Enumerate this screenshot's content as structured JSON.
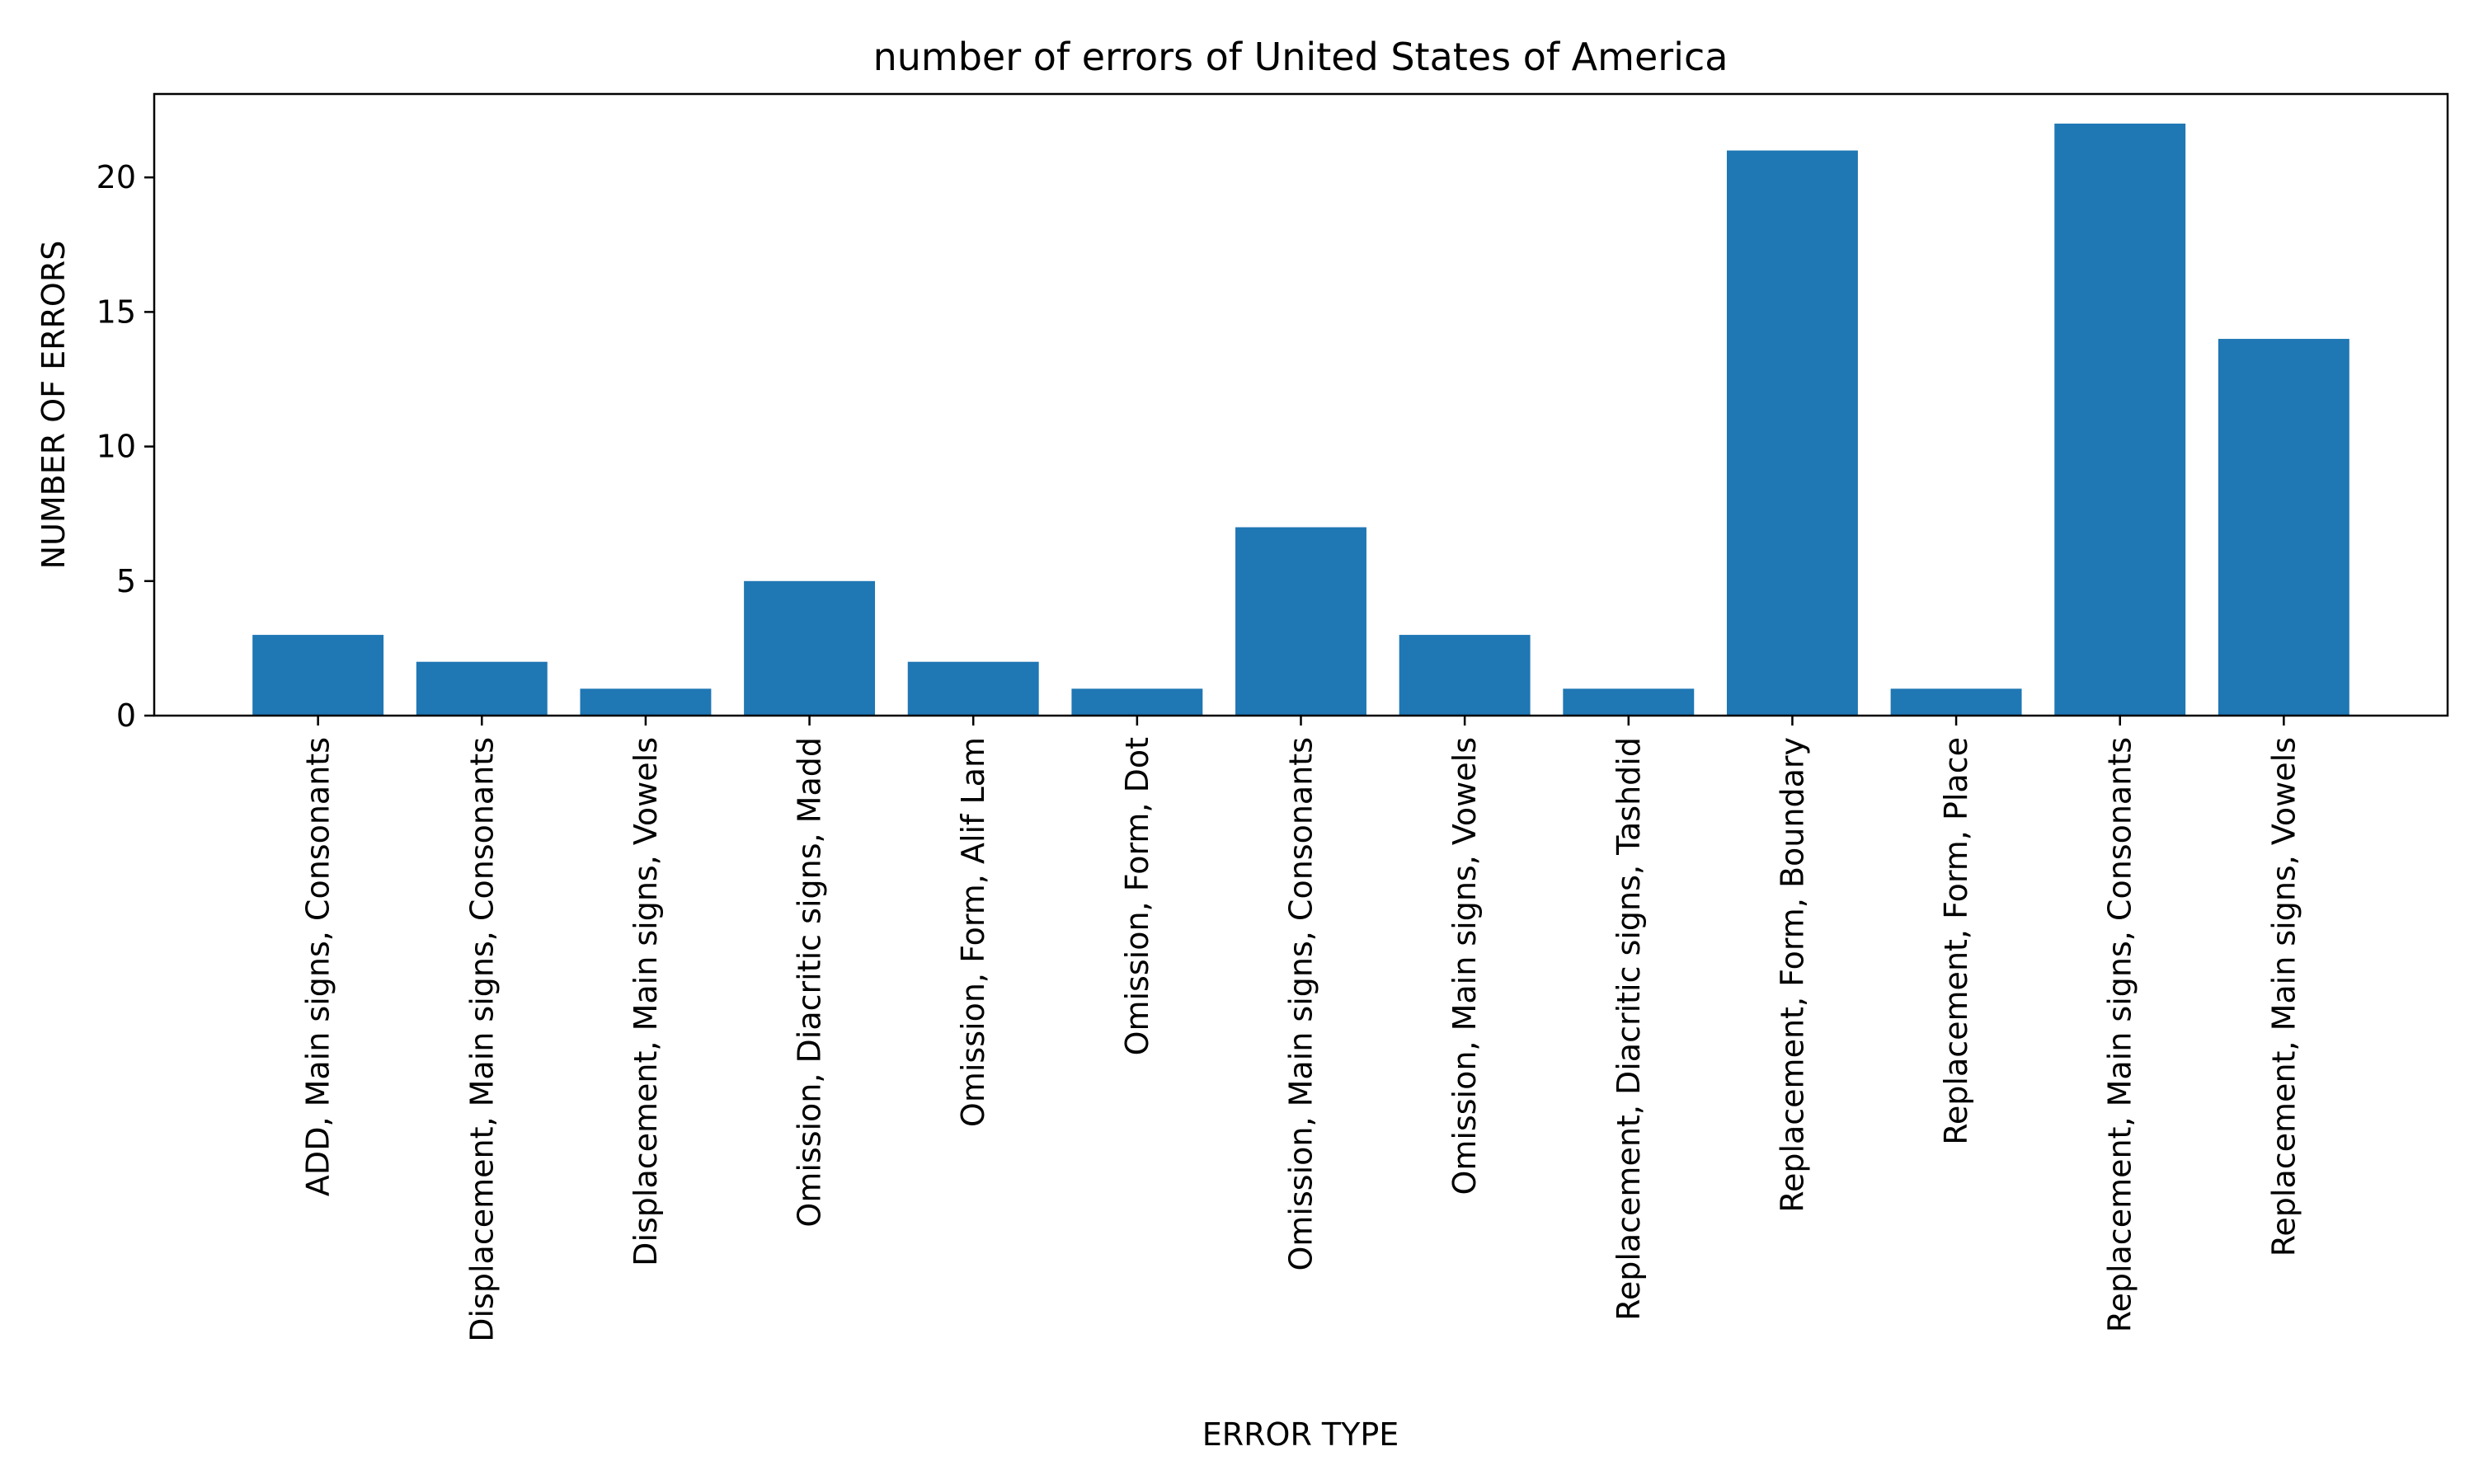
{
  "chart_data": {
    "type": "bar",
    "title": "number of errors of United States of America",
    "xlabel": "ERROR TYPE",
    "ylabel": "NUMBER OF ERRORS",
    "categories": [
      "ADD, Main signs, Consonants",
      "Displacement, Main signs, Consonants",
      "Displacement, Main signs, Vowels",
      "Omission, Diacritic signs, Madd",
      "Omission, Form, Alif Lam",
      "Omission, Form, Dot",
      "Omission, Main signs, Consonants",
      "Omission, Main signs, Vowels",
      "Replacement, Diacritic signs, Tashdid",
      "Replacement, Form, Boundary",
      "Replacement, Form, Place",
      "Replacement, Main signs, Consonants",
      "Replacement, Main signs, Vowels"
    ],
    "values": [
      3,
      2,
      1,
      5,
      2,
      1,
      7,
      3,
      1,
      21,
      1,
      22,
      14
    ],
    "ylim": [
      0,
      23.1
    ],
    "yticks": [
      0,
      5,
      10,
      15,
      20
    ],
    "grid": false,
    "bar_color": "#1f77b4"
  }
}
